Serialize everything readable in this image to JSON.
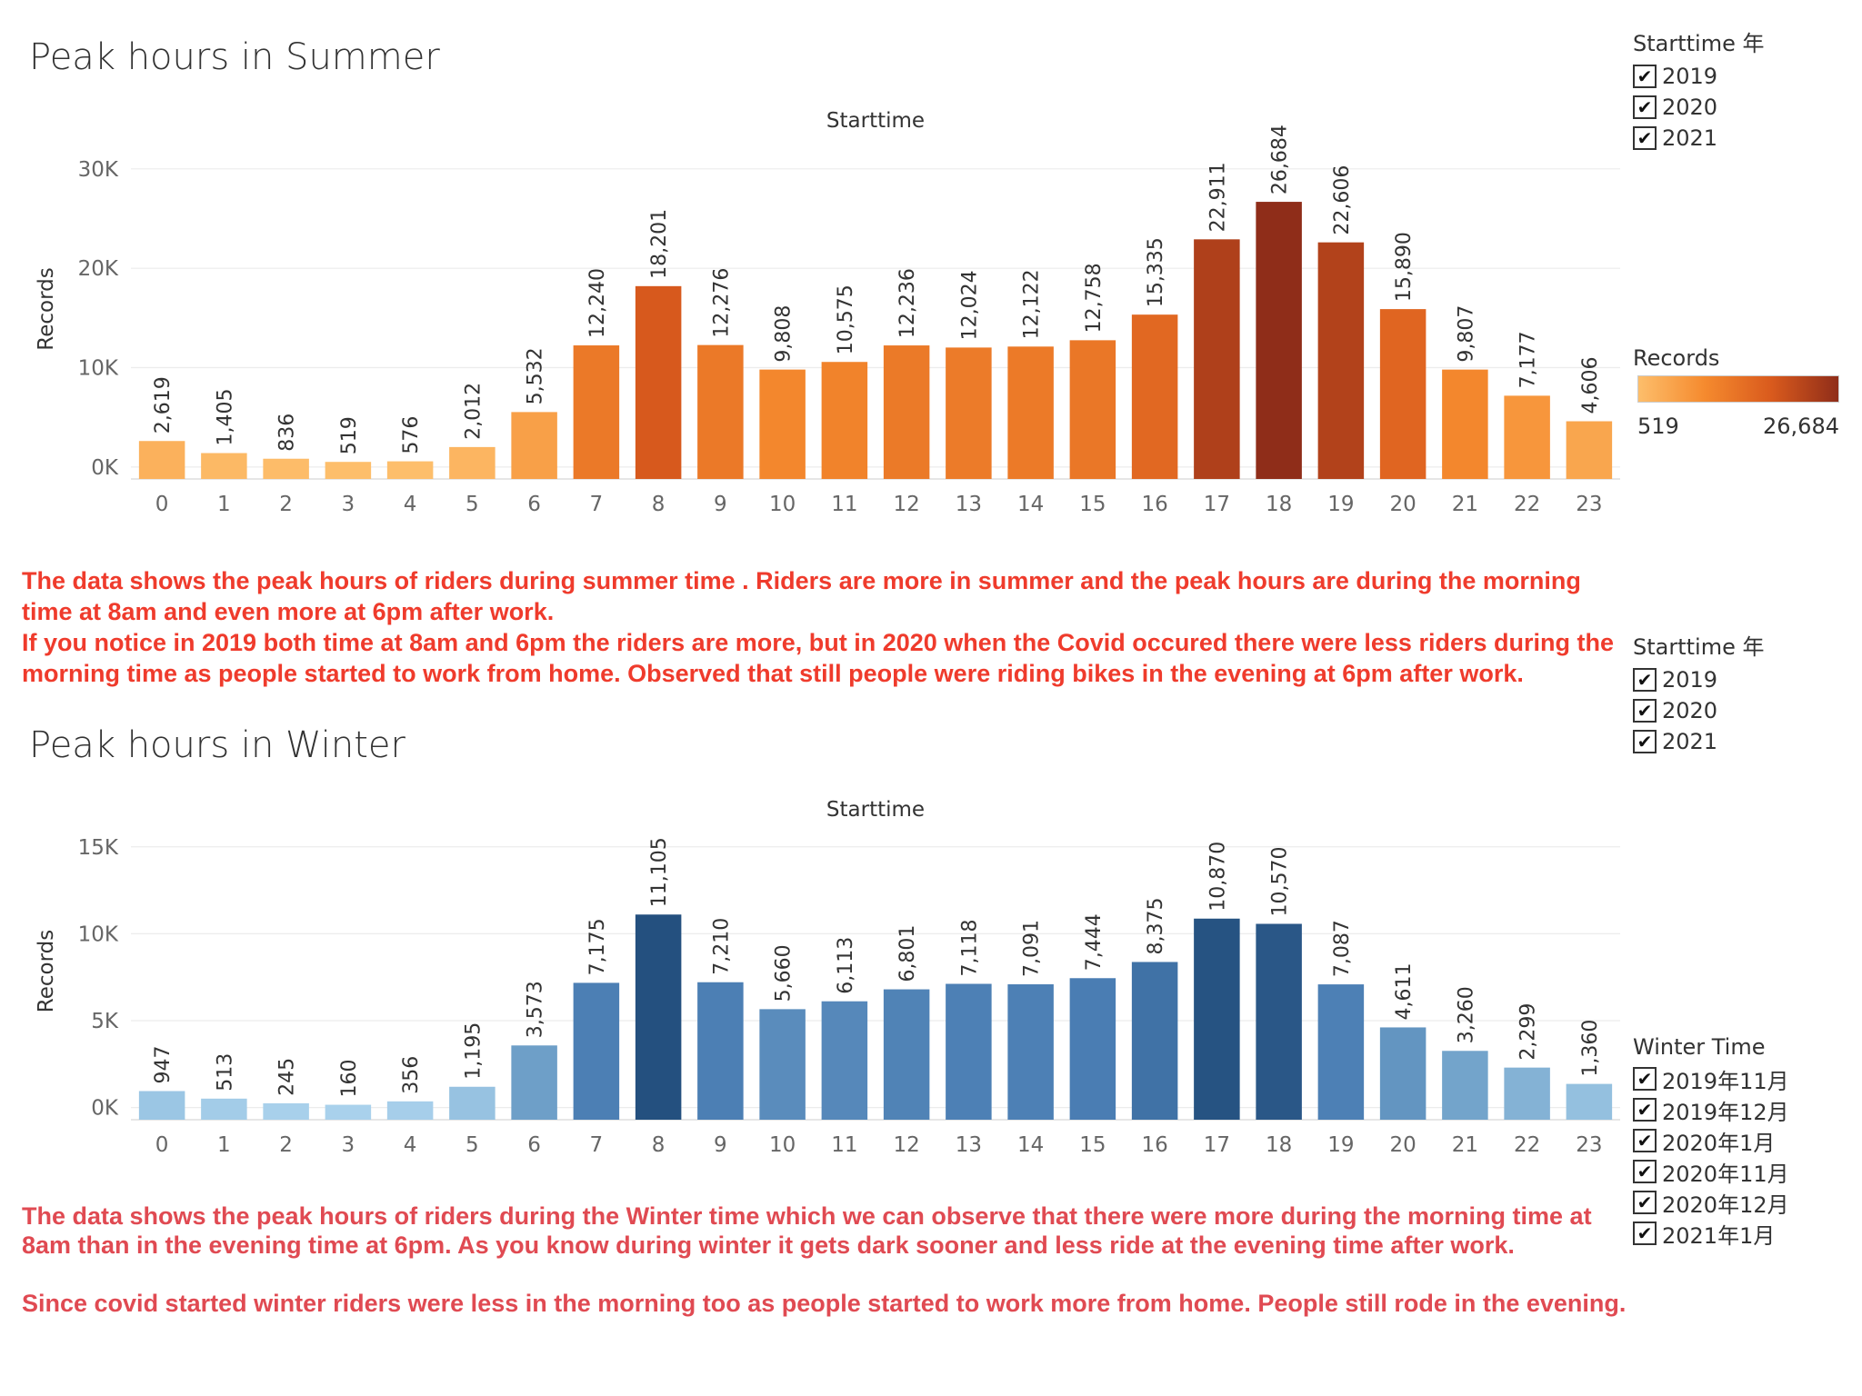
{
  "charts": {
    "summer": {
      "title": "Peak hours in Summer"
    },
    "winter": {
      "title": "Peak hours in Winter"
    }
  },
  "chart_data": [
    {
      "type": "bar",
      "title": "Peak hours in Summer",
      "xlabel": "Starttime",
      "ylabel": "Records",
      "categories": [
        "0",
        "1",
        "2",
        "3",
        "4",
        "5",
        "6",
        "7",
        "8",
        "9",
        "10",
        "11",
        "12",
        "13",
        "14",
        "15",
        "16",
        "17",
        "18",
        "19",
        "20",
        "21",
        "22",
        "23"
      ],
      "values": [
        2619,
        1405,
        836,
        519,
        576,
        2012,
        5532,
        12240,
        18201,
        12276,
        9808,
        10575,
        12236,
        12024,
        12122,
        12758,
        15335,
        22911,
        26684,
        22606,
        15890,
        9807,
        7177,
        4606
      ],
      "data_labels": [
        "2,619",
        "1,405",
        "836",
        "519",
        "576",
        "2,012",
        "5,532",
        "12,240",
        "18,201",
        "12,276",
        "9,808",
        "10,575",
        "12,236",
        "12,024",
        "12,122",
        "12,758",
        "15,335",
        "22,911",
        "26,684",
        "22,606",
        "15,890",
        "9,807",
        "7,177",
        "4,606"
      ],
      "yticks": [
        0,
        10000,
        20000,
        30000
      ],
      "ytick_labels": [
        "0K",
        "10K",
        "20K",
        "30K"
      ],
      "ylim": [
        -1200,
        33000
      ],
      "color_scale": [
        "#fdbe6b",
        "#f58a2e",
        "#d95a1d",
        "#8f2d19"
      ],
      "grid": true
    },
    {
      "type": "bar",
      "title": "Peak hours in Winter",
      "xlabel": "Starttime",
      "ylabel": "Records",
      "categories": [
        "0",
        "1",
        "2",
        "3",
        "4",
        "5",
        "6",
        "7",
        "8",
        "9",
        "10",
        "11",
        "12",
        "13",
        "14",
        "15",
        "16",
        "17",
        "18",
        "19",
        "20",
        "21",
        "22",
        "23"
      ],
      "values": [
        947,
        513,
        245,
        160,
        356,
        1195,
        3573,
        7175,
        11105,
        7210,
        5660,
        6113,
        6801,
        7118,
        7091,
        7444,
        8375,
        10870,
        10570,
        7087,
        4611,
        3260,
        2299,
        1360
      ],
      "data_labels": [
        "947",
        "513",
        "245",
        "160",
        "356",
        "1,195",
        "3,573",
        "7,175",
        "11,105",
        "7,210",
        "5,660",
        "6,113",
        "6,801",
        "7,118",
        "7,091",
        "7,444",
        "8,375",
        "10,870",
        "10,570",
        "7,087",
        "4,611",
        "3,260",
        "2,299",
        "1,360"
      ],
      "yticks": [
        0,
        5000,
        10000,
        15000
      ],
      "ytick_labels": [
        "0K",
        "5K",
        "10K",
        "15K"
      ],
      "ylim": [
        -700,
        16400
      ],
      "color_scale": [
        "#a9d1ec",
        "#6a9cc5",
        "#4a7db3",
        "#24507f"
      ],
      "grid": true
    }
  ],
  "notes": {
    "summer": [
      "The data shows the peak hours of riders during summer time . Riders are more in summer and the peak hours are during the morning time at 8am and even more at 6pm after work.",
      "If you notice in 2019 both time at 8am and 6pm the riders are more, but in 2020 when the Covid occured there were less riders during the morning time as people started to work from home. Observed that still people were riding bikes in the evening at 6pm after work."
    ],
    "winter": [
      "The data shows the peak hours of riders during the Winter time which we can observe that there were more during the morning time at 8am than in the evening time at 6pm. As you know during winter it gets dark sooner and less ride at the evening time after work.",
      "Since covid started winter riders were less in the morning too as people started to work more from home. People still rode in the evening."
    ]
  },
  "legends": {
    "summer_year": {
      "title": "Starttime 年",
      "items": [
        "2019",
        "2020",
        "2021"
      ],
      "checked": [
        true,
        true,
        true
      ]
    },
    "records": {
      "title": "Records",
      "min": "519",
      "max": "26,684"
    },
    "winter_year": {
      "title": "Starttime 年",
      "items": [
        "2019",
        "2020",
        "2021"
      ],
      "checked": [
        true,
        true,
        true
      ]
    },
    "winter_time": {
      "title": "Winter Time",
      "items": [
        "2019年11月",
        "2019年12月",
        "2020年1月",
        "2020年11月",
        "2020年12月",
        "2021年1月"
      ],
      "checked": [
        true,
        true,
        true,
        true,
        true,
        true
      ]
    }
  },
  "check_glyph": "✔"
}
